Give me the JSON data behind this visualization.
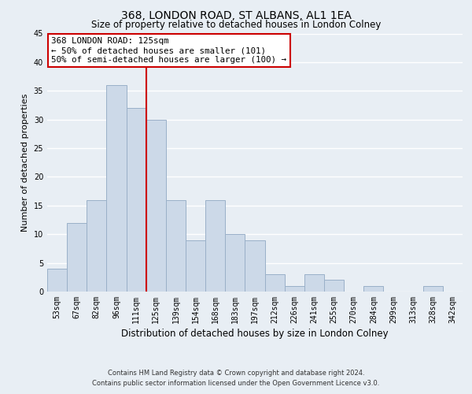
{
  "title": "368, LONDON ROAD, ST ALBANS, AL1 1EA",
  "subtitle": "Size of property relative to detached houses in London Colney",
  "xlabel": "Distribution of detached houses by size in London Colney",
  "ylabel": "Number of detached properties",
  "categories": [
    "53sqm",
    "67sqm",
    "82sqm",
    "96sqm",
    "111sqm",
    "125sqm",
    "139sqm",
    "154sqm",
    "168sqm",
    "183sqm",
    "197sqm",
    "212sqm",
    "226sqm",
    "241sqm",
    "255sqm",
    "270sqm",
    "284sqm",
    "299sqm",
    "313sqm",
    "328sqm",
    "342sqm"
  ],
  "values": [
    4,
    12,
    16,
    36,
    32,
    30,
    16,
    9,
    16,
    10,
    9,
    3,
    1,
    3,
    2,
    0,
    1,
    0,
    0,
    1,
    0
  ],
  "bar_color": "#ccd9e8",
  "bar_edge_color": "#9ab0c8",
  "vline_color": "#cc0000",
  "ylim": [
    0,
    45
  ],
  "yticks": [
    0,
    5,
    10,
    15,
    20,
    25,
    30,
    35,
    40,
    45
  ],
  "annotation_title": "368 LONDON ROAD: 125sqm",
  "annotation_line1": "← 50% of detached houses are smaller (101)",
  "annotation_line2": "50% of semi-detached houses are larger (100) →",
  "footer1": "Contains HM Land Registry data © Crown copyright and database right 2024.",
  "footer2": "Contains public sector information licensed under the Open Government Licence v3.0.",
  "bg_color": "#e8eef4",
  "plot_bg_color": "#e8eef4",
  "title_fontsize": 10,
  "subtitle_fontsize": 8.5,
  "tick_fontsize": 7,
  "ylabel_fontsize": 8,
  "xlabel_fontsize": 8.5,
  "grid_color": "#ffffff",
  "grid_lw": 1.0
}
